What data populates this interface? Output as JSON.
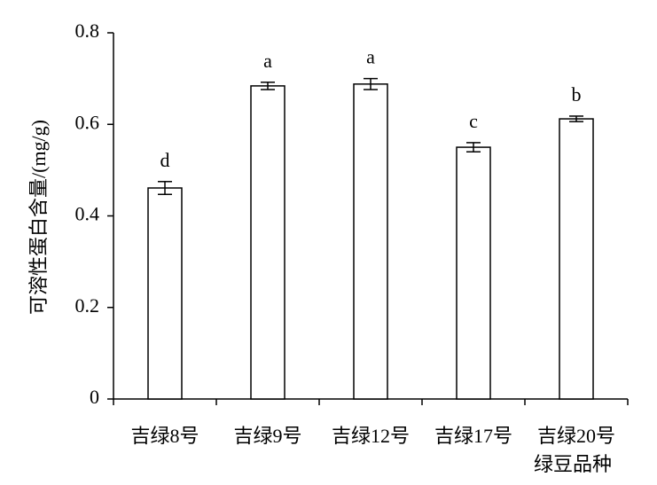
{
  "chart_data": {
    "type": "bar",
    "ylabel": "可溶性蛋白含量/(mg/g)",
    "xlabel": "绿豆品种",
    "categories": [
      "吉绿8号",
      "吉绿9号",
      "吉绿12号",
      "吉绿17号",
      "吉绿20号"
    ],
    "values": [
      0.461,
      0.684,
      0.688,
      0.55,
      0.612
    ],
    "errors": [
      0.014,
      0.008,
      0.012,
      0.01,
      0.006
    ],
    "annotations": [
      "d",
      "a",
      "a",
      "c",
      "b"
    ],
    "color": "#ffffff",
    "ylim": [
      0,
      0.8
    ],
    "yticks": [
      0,
      0.2,
      0.4,
      0.6,
      0.8
    ],
    "grid": false
  }
}
